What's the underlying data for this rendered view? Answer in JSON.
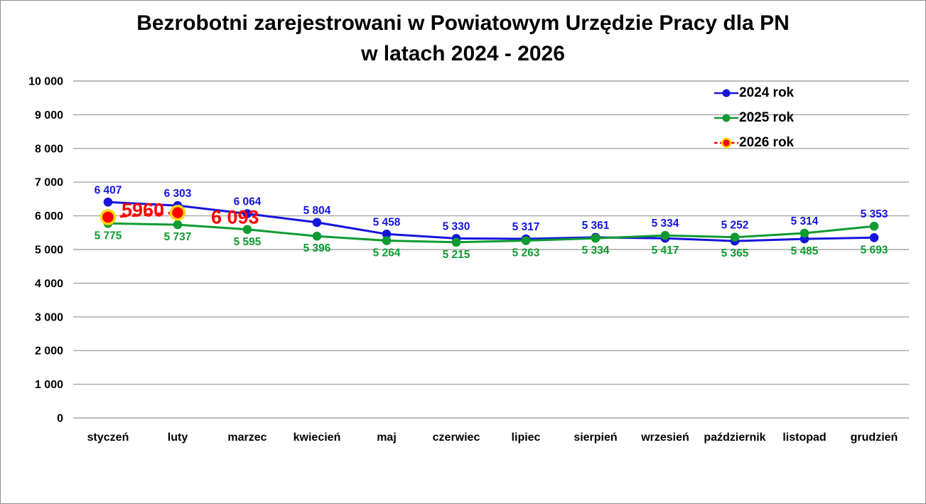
{
  "chart_data": {
    "type": "line",
    "title_lines": [
      "Bezrobotni zarejestrowani w Powiatowym Urzędzie Pracy dla PN",
      "w latach 2024 - 2026"
    ],
    "categories": [
      "styczeń",
      "luty",
      "marzec",
      "kwiecień",
      "maj",
      "czerwiec",
      "lipiec",
      "sierpień",
      "wrzesień",
      "październik",
      "listopad",
      "grudzień"
    ],
    "series": [
      {
        "name": "2024 rok",
        "color": "#1414DC",
        "marker": "circle",
        "label_position": "above",
        "values": [
          6407,
          6303,
          6064,
          5804,
          5458,
          5330,
          5317,
          5361,
          5334,
          5252,
          5314,
          5353
        ],
        "labels": [
          "6 407",
          "6 303",
          "6 064",
          "5 804",
          "5 458",
          "5 330",
          "5 317",
          "5 361",
          "5 334",
          "5 252",
          "5 314",
          "5 353"
        ]
      },
      {
        "name": "2025 rok",
        "color": "#0E9B30",
        "marker": "circle",
        "label_position": "below",
        "values": [
          5775,
          5737,
          5595,
          5396,
          5264,
          5215,
          5263,
          5334,
          5417,
          5365,
          5485,
          5693
        ],
        "labels": [
          "5 775",
          "5 737",
          "5 595",
          "5 396",
          "5 264",
          "5 215",
          "5 263",
          "5 334",
          "5 417",
          "5 365",
          "5 485",
          "5 693"
        ]
      },
      {
        "name": "2026 rok",
        "color": "#FF0000",
        "marker": "circle-large",
        "marker_ring": "#FFD800",
        "dashed": true,
        "label_position": "inline",
        "values": [
          5960,
          6093,
          null,
          null,
          null,
          null,
          null,
          null,
          null,
          null,
          null,
          null
        ],
        "labels": [
          "5960",
          "6 093"
        ]
      }
    ],
    "ylim": [
      0,
      10000
    ],
    "ytick_step": 1000,
    "ytick_labels": [
      "0",
      "1 000",
      "2 000",
      "3 000",
      "4 000",
      "5 000",
      "6 000",
      "7 000",
      "8 000",
      "9 000",
      "10 000"
    ],
    "grid": true,
    "legend_position": "top-right",
    "colors": {
      "gridline": "#A6A6A6",
      "axis_text": "#000000",
      "background": "#FFFFFF",
      "frame_border": "#8F8F8F"
    }
  }
}
